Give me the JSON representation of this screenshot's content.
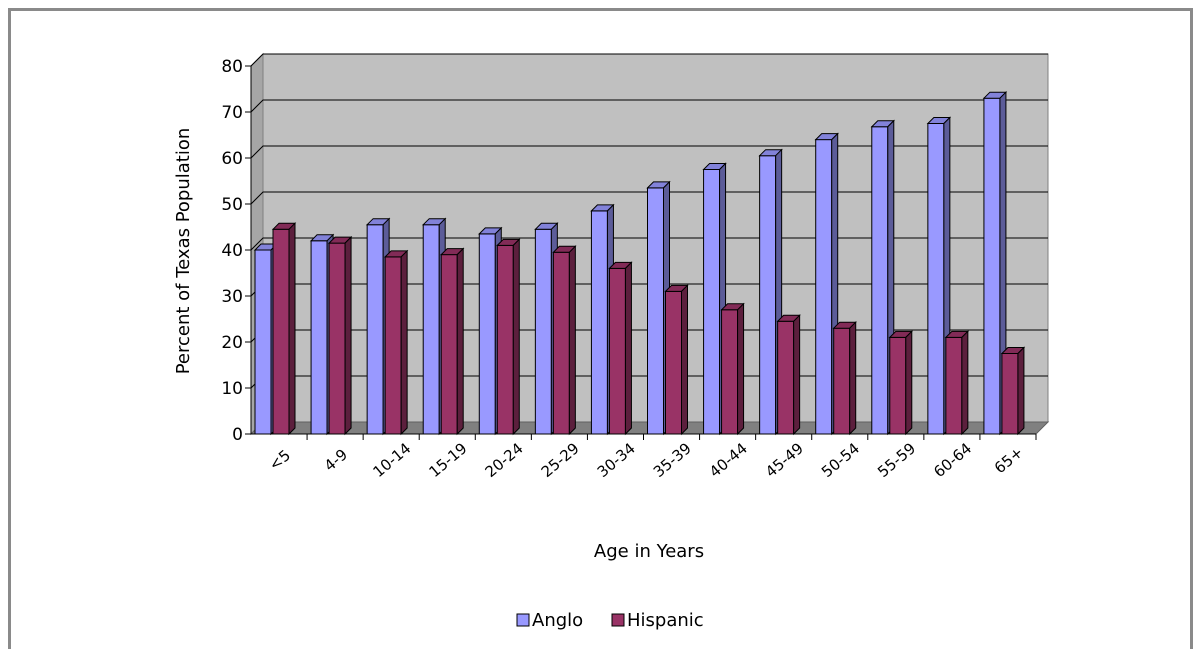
{
  "chart_data": {
    "type": "bar",
    "title": "",
    "xlabel": "Age in Years",
    "ylabel": "Percent of Texas Population",
    "ylim": [
      0,
      80
    ],
    "yticks": [
      "0",
      "10",
      "20",
      "30",
      "40",
      "50",
      "60",
      "70",
      "80"
    ],
    "categories": [
      "<5",
      "4-9",
      "10-14",
      "15-19",
      "20-24",
      "25-29",
      "30-34",
      "35-39",
      "40-44",
      "45-49",
      "50-54",
      "55-59",
      "60-64",
      "65+"
    ],
    "series": [
      {
        "name": "Anglo",
        "color": "#9999ff",
        "values": [
          40,
          42,
          45.5,
          45.5,
          43.5,
          44.5,
          48.5,
          53.5,
          57.5,
          60.5,
          64,
          66.8,
          67.5,
          73
        ]
      },
      {
        "name": "Hispanic",
        "color": "#993366",
        "values": [
          44.5,
          41.5,
          38.5,
          39,
          41,
          39.5,
          36,
          31,
          27,
          24.5,
          23,
          21,
          21,
          17.5
        ]
      }
    ],
    "grid": true,
    "legend": "bottom",
    "style": "3d-clustered-column"
  }
}
